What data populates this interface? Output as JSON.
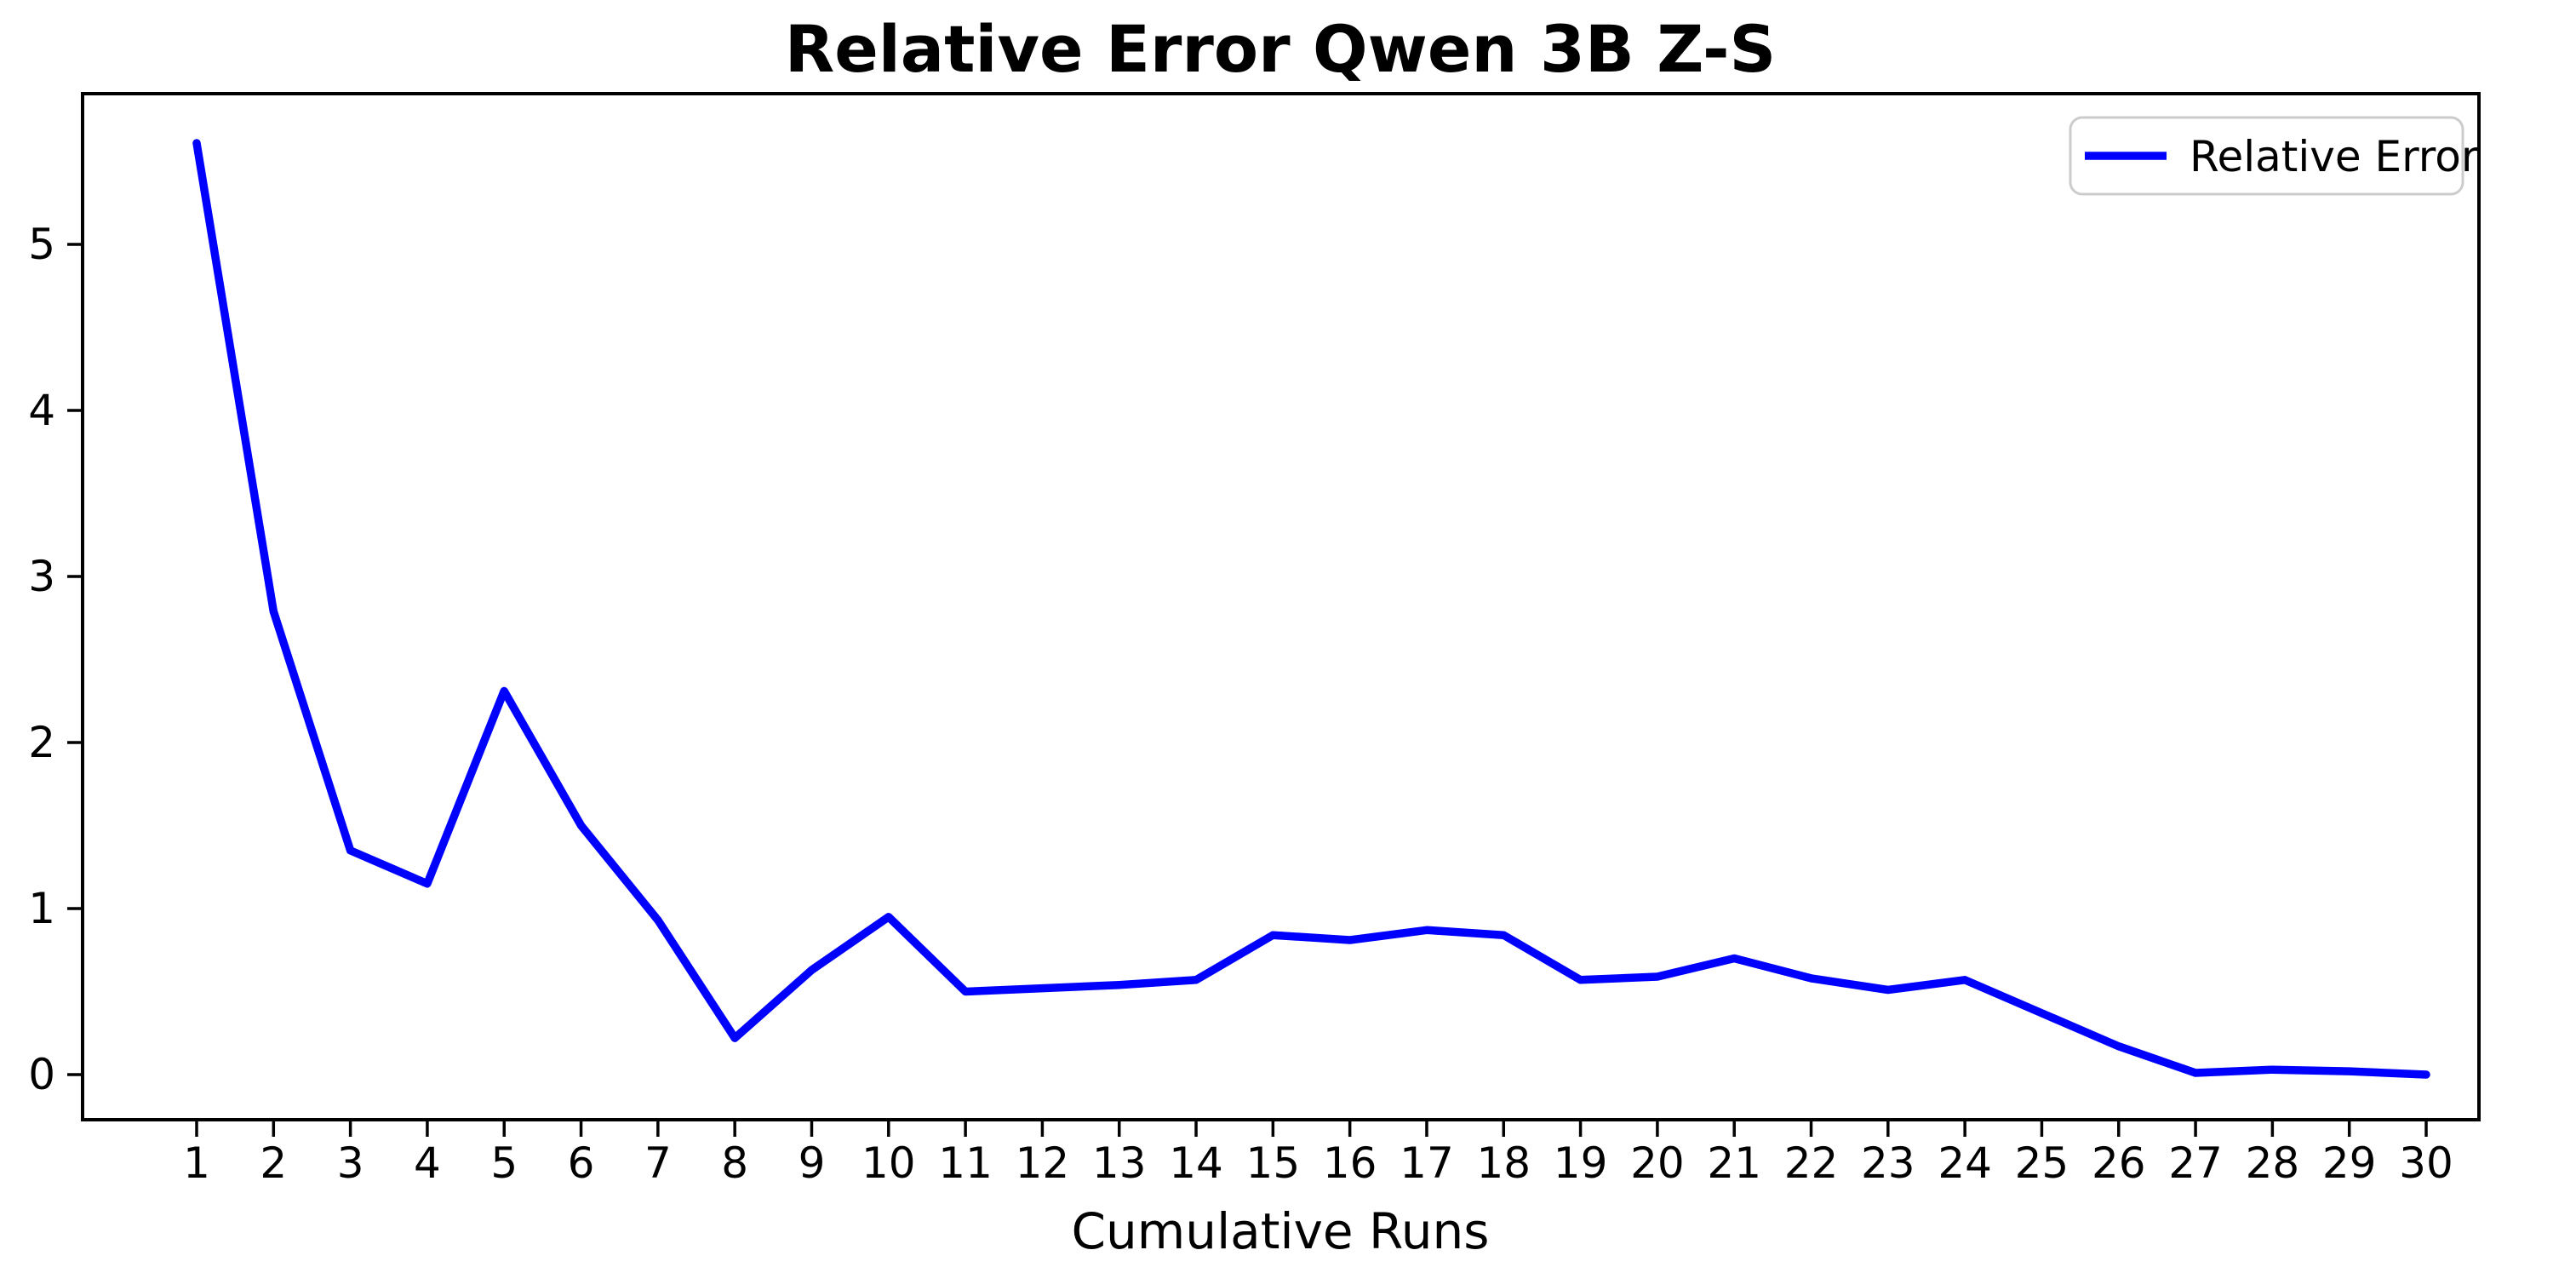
{
  "chart_data": {
    "type": "line",
    "title": "Relative Error Qwen 3B Z-S",
    "xlabel": "Cumulative Runs",
    "ylabel": "",
    "categories": [
      1,
      2,
      3,
      4,
      5,
      6,
      7,
      8,
      9,
      10,
      11,
      12,
      13,
      14,
      15,
      16,
      17,
      18,
      19,
      20,
      21,
      22,
      23,
      24,
      25,
      26,
      27,
      28,
      29,
      30
    ],
    "series": [
      {
        "name": "Relative Error",
        "color": "#0000ff",
        "values": [
          5.61,
          2.79,
          1.35,
          1.15,
          2.31,
          1.5,
          0.93,
          0.22,
          0.63,
          0.95,
          0.5,
          0.52,
          0.54,
          0.57,
          0.84,
          0.81,
          0.87,
          0.84,
          0.57,
          0.59,
          0.7,
          0.58,
          0.51,
          0.57,
          0.37,
          0.17,
          0.01,
          0.03,
          0.02,
          0.0
        ]
      }
    ],
    "y_ticks": [
      0,
      1,
      2,
      3,
      4,
      5
    ],
    "ylim": [
      -0.27,
      5.91
    ],
    "xlim": [
      -0.45,
      31.45
    ],
    "grid": false,
    "legend_position": "upper right",
    "legend_entries": [
      "Relative Error"
    ],
    "axis_color": "#000000",
    "background_color": "#ffffff"
  }
}
